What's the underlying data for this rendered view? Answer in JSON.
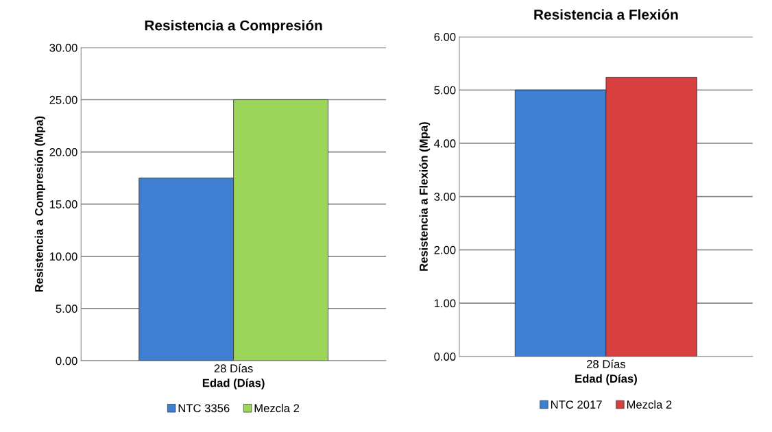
{
  "chart_data": [
    {
      "type": "bar",
      "title": "Resistencia a Compresión",
      "xlabel": "Edad (Días)",
      "ylabel": "Resistencia a Compresión (Mpa)",
      "categories": [
        "28 Días"
      ],
      "series": [
        {
          "name": "NTC 3356",
          "color": "#3f7fd1",
          "values": [
            17.5
          ]
        },
        {
          "name": "Mezcla 2",
          "color": "#9bd65a",
          "values": [
            25.0
          ]
        }
      ],
      "ylim": [
        0,
        30
      ],
      "yticks": [
        {
          "value": 0,
          "label": "0.00"
        },
        {
          "value": 5,
          "label": "5.00"
        },
        {
          "value": 10,
          "label": "10.00"
        },
        {
          "value": 15,
          "label": "15.00"
        },
        {
          "value": 20,
          "label": "20.00"
        },
        {
          "value": 25,
          "label": "25.00"
        },
        {
          "value": 30,
          "label": "30.00"
        }
      ],
      "grid": "y",
      "legend": "bottom"
    },
    {
      "type": "bar",
      "title": "Resistencia a Flexión",
      "xlabel": "Edad (Días)",
      "ylabel": "Resistencia a Flexión (Mpa)",
      "categories": [
        "28 Días"
      ],
      "series": [
        {
          "name": "NTC 2017",
          "color": "#3f7fd1",
          "values": [
            5.0
          ]
        },
        {
          "name": "Mezcla 2",
          "color": "#d84040",
          "values": [
            5.24
          ]
        }
      ],
      "ylim": [
        0,
        6
      ],
      "yticks": [
        {
          "value": 0,
          "label": "0.00"
        },
        {
          "value": 1,
          "label": "1.00"
        },
        {
          "value": 2,
          "label": "2.00"
        },
        {
          "value": 3,
          "label": "3.00"
        },
        {
          "value": 4,
          "label": "4.00"
        },
        {
          "value": 5,
          "label": "5.00"
        },
        {
          "value": 6,
          "label": "6.00"
        }
      ],
      "grid": "y",
      "legend": "bottom"
    }
  ]
}
